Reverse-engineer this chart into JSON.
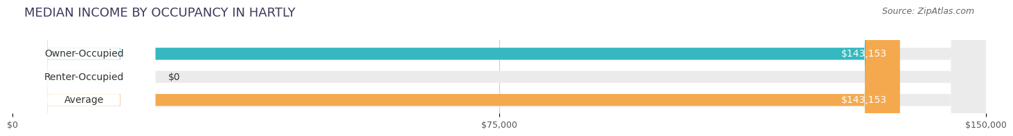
{
  "title": "MEDIAN INCOME BY OCCUPANCY IN HARTLY",
  "source": "Source: ZipAtlas.com",
  "categories": [
    "Owner-Occupied",
    "Renter-Occupied",
    "Average"
  ],
  "values": [
    143153,
    0,
    143153
  ],
  "bar_colors": [
    "#35b8c0",
    "#c9a8d4",
    "#f5a94e"
  ],
  "bar_bg_color": "#ebebeb",
  "label_bg_color": "#ffffff",
  "value_labels": [
    "$143,153",
    "$0",
    "$143,153"
  ],
  "xlim": [
    0,
    150000
  ],
  "xticks": [
    0,
    75000,
    150000
  ],
  "xtick_labels": [
    "$0",
    "$75,000",
    "$150,000"
  ],
  "title_fontsize": 13,
  "source_fontsize": 9,
  "label_fontsize": 10,
  "value_fontsize": 10,
  "background_color": "#ffffff",
  "title_color": "#3a3a5c",
  "source_color": "#666666",
  "grid_color": "#cccccc",
  "text_color": "#333333",
  "value_text_color": "#ffffff"
}
